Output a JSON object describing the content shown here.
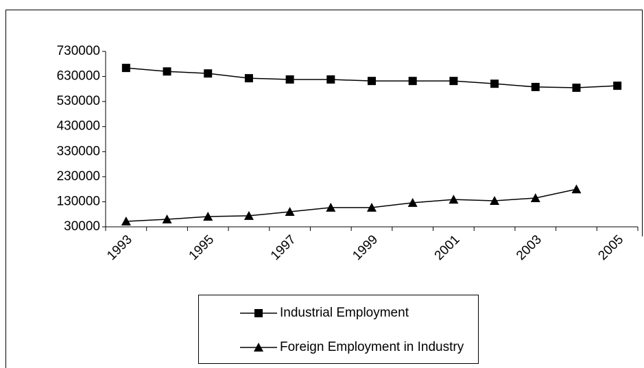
{
  "chart_data": {
    "type": "line",
    "categories": [
      "1993",
      null,
      "1995",
      null,
      "1997",
      null,
      "1999",
      null,
      "2001",
      null,
      "2003",
      null,
      "2005"
    ],
    "series": [
      {
        "name": "Industrial Employment",
        "color": "#000000",
        "marker": "square",
        "values": [
          664000,
          650000,
          642000,
          623000,
          618000,
          618000,
          612000,
          612000,
          612000,
          601000,
          588000,
          585000,
          593000
        ]
      },
      {
        "name": "Foreign Employment in Industry",
        "color": "#000000",
        "marker": "triangle",
        "values": [
          52000,
          60000,
          71000,
          74000,
          90000,
          107000,
          107000,
          126000,
          139000,
          134000,
          145000,
          180000,
          null
        ]
      }
    ],
    "ylim": [
      30000,
      730000
    ],
    "yticks": [
      30000,
      130000,
      230000,
      330000,
      430000,
      530000,
      630000,
      730000
    ],
    "grid": false,
    "legend": "bottom"
  }
}
